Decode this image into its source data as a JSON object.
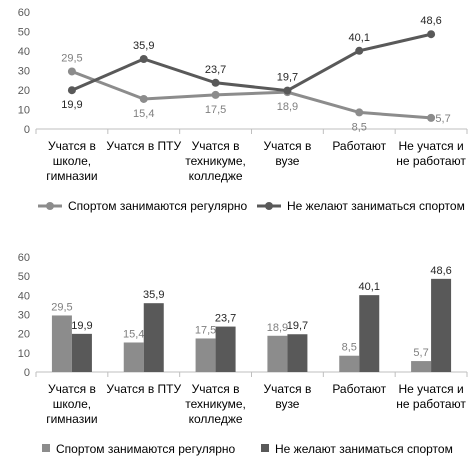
{
  "colors": {
    "series1": "#8c8c8c",
    "series2": "#595959",
    "grid": "#d9d9d9",
    "axis": "#bfbfbf"
  },
  "chart_data": [
    {
      "type": "line",
      "categories": [
        "Учатся в школе, гимназии",
        "Учатся в ПТУ",
        "Учатся в техникуме, колледже",
        "Учатся в вузе",
        "Работают",
        "Не учатся и не работают"
      ],
      "category_lines": [
        [
          "Учатся в",
          "школе,",
          "гимназии"
        ],
        [
          "Учатся в ПТУ"
        ],
        [
          "Учатся в",
          "техникуме,",
          "колледже"
        ],
        [
          "Учатся в",
          "вузе"
        ],
        [
          "Работают"
        ],
        [
          "Не учатся и",
          "не работают"
        ]
      ],
      "series": [
        {
          "name": "Спортом занимаются регулярно",
          "values": [
            29.5,
            15.4,
            17.5,
            18.9,
            8.5,
            5.7
          ],
          "labels": [
            "29,5",
            "15,4",
            "17,5",
            "18,9",
            "8,5",
            "5,7"
          ]
        },
        {
          "name": "Не желают заниматься спортом",
          "values": [
            19.9,
            35.9,
            23.7,
            19.7,
            40.1,
            48.6
          ],
          "labels": [
            "19,9",
            "35,9",
            "23,7",
            "19,7",
            "40,1",
            "48,6"
          ]
        }
      ],
      "ylim": [
        0,
        60
      ],
      "yticks": [
        0,
        10,
        20,
        30,
        40,
        50,
        60
      ],
      "grid": false,
      "legend": "bottom"
    },
    {
      "type": "bar",
      "categories": [
        "Учатся в школе, гимназии",
        "Учатся в ПТУ",
        "Учатся в техникуме, колледже",
        "Учатся в вузе",
        "Работают",
        "Не учатся и не работают"
      ],
      "category_lines": [
        [
          "Учатся в",
          "школе,",
          "гимназии"
        ],
        [
          "Учатся в ПТУ"
        ],
        [
          "Учатся в",
          "техникуме,",
          "колледже"
        ],
        [
          "Учатся в",
          "вузе"
        ],
        [
          "Работают"
        ],
        [
          "Не учатся и",
          "не работают"
        ]
      ],
      "series": [
        {
          "name": "Спортом занимаются регулярно",
          "values": [
            29.5,
            15.4,
            17.5,
            18.9,
            8.5,
            5.7
          ],
          "labels": [
            "29,5",
            "15,4",
            "17,5",
            "18,9",
            "8,5",
            "5,7"
          ]
        },
        {
          "name": "Не желают заниматься спортом",
          "values": [
            19.9,
            35.9,
            23.7,
            19.7,
            40.1,
            48.6
          ],
          "labels": [
            "19,9",
            "35,9",
            "23,7",
            "19,7",
            "40,1",
            "48,6"
          ]
        }
      ],
      "ylim": [
        0,
        60
      ],
      "yticks": [
        0,
        10,
        20,
        30,
        40,
        50,
        60
      ],
      "grid": false,
      "legend": "bottom"
    }
  ]
}
